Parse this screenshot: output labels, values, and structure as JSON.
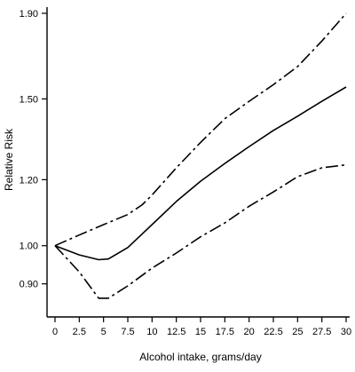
{
  "chart_data": {
    "type": "line",
    "title": "",
    "xlabel": "Alcohol intake, grams/day",
    "ylabel": "Relative Risk",
    "y_scale": "log",
    "xlim": [
      0,
      30
    ],
    "ylim": [
      0.85,
      1.9
    ],
    "x_ticks": [
      0,
      2.5,
      5,
      7.5,
      10,
      12.5,
      15,
      17.5,
      20,
      22.5,
      25,
      27.5,
      30
    ],
    "x_tick_labels": [
      "0",
      "2.5",
      "5",
      "7.5",
      "10",
      "12.5",
      "15",
      "17.5",
      "20",
      "22.5",
      "25",
      "27.5",
      "30"
    ],
    "y_ticks": [
      0.9,
      1.0,
      1.2,
      1.5,
      1.9
    ],
    "y_tick_labels": [
      "0.90",
      "1.00",
      "1.20",
      "1.50",
      "1.90"
    ],
    "grid": false,
    "legend": "none",
    "series": [
      {
        "style": "solid",
        "color": "#000000",
        "x": [
          0,
          2.5,
          4.5,
          5.5,
          7.5,
          10,
          12.5,
          15,
          17.5,
          20,
          22.5,
          25,
          27.5,
          30
        ],
        "y": [
          1.0,
          0.975,
          0.962,
          0.964,
          0.995,
          1.06,
          1.13,
          1.195,
          1.255,
          1.315,
          1.375,
          1.43,
          1.49,
          1.55
        ]
      },
      {
        "style": "dashed",
        "color": "#000000",
        "x": [
          0,
          2.5,
          5,
          7.5,
          9,
          10,
          12.5,
          15,
          17.5,
          20,
          22.5,
          25,
          27.5,
          30
        ],
        "y": [
          1.0,
          1.03,
          1.06,
          1.09,
          1.12,
          1.15,
          1.24,
          1.33,
          1.42,
          1.49,
          1.56,
          1.64,
          1.76,
          1.9
        ]
      },
      {
        "style": "dashed",
        "color": "#000000",
        "x": [
          0,
          2.5,
          4.5,
          5.5,
          7.5,
          10,
          12.5,
          15,
          17.5,
          20,
          22.5,
          25,
          27.5,
          30
        ],
        "y": [
          1.0,
          0.93,
          0.865,
          0.865,
          0.895,
          0.94,
          0.98,
          1.025,
          1.065,
          1.115,
          1.16,
          1.21,
          1.24,
          1.25
        ]
      }
    ]
  }
}
